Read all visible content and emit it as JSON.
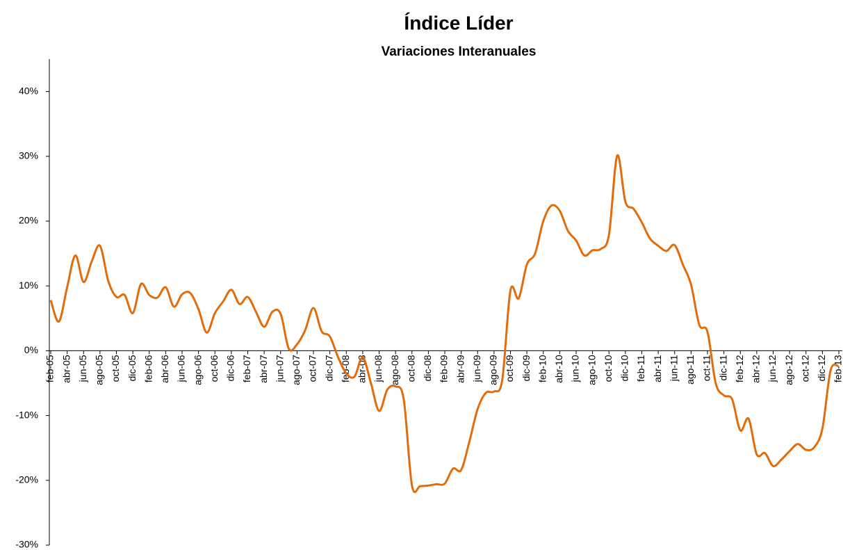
{
  "chart_data": {
    "type": "line",
    "title": "Índice Líder",
    "subtitle": "Variaciones Interanuales",
    "categories": [
      "feb-05",
      null,
      "abr-05",
      null,
      "jun-05",
      null,
      "ago-05",
      null,
      "oct-05",
      null,
      "dic-05",
      null,
      "feb-06",
      null,
      "abr-06",
      null,
      "jun-06",
      null,
      "ago-06",
      null,
      "oct-06",
      null,
      "dic-06",
      null,
      "feb-07",
      null,
      "abr-07",
      null,
      "jun-07",
      null,
      "ago-07",
      null,
      "oct-07",
      null,
      "dic-07",
      null,
      "feb-08",
      null,
      "abr-08",
      null,
      "jun-08",
      null,
      "ago-08",
      null,
      "oct-08",
      null,
      "dic-08",
      null,
      "feb-09",
      null,
      "abr-09",
      null,
      "jun-09",
      null,
      "ago-09",
      null,
      "oct-09",
      null,
      "dic-09",
      null,
      "feb-10",
      null,
      "abr-10",
      null,
      "jun-10",
      null,
      "ago-10",
      null,
      "oct-10",
      null,
      "dic-10",
      null,
      "feb-11",
      null,
      "abr-11",
      null,
      "jun-11",
      null,
      "ago-11",
      null,
      "oct-11",
      null,
      "dic-11",
      null,
      "feb-12",
      null,
      "abr-12",
      null,
      "jun-12",
      null,
      "ago-12",
      null,
      "oct-12",
      null,
      "dic-12",
      null,
      "feb-13"
    ],
    "series": [
      {
        "color": "#E36C0A",
        "values": [
          7.8,
          4.5,
          9.8,
          14.7,
          10.6,
          13.8,
          16.2,
          10.8,
          8.3,
          8.6,
          5.8,
          10.3,
          8.6,
          8.2,
          9.8,
          6.8,
          8.7,
          8.9,
          6.4,
          2.8,
          5.8,
          7.6,
          9.4,
          7.2,
          8.3,
          6.0,
          3.7,
          6.0,
          5.7,
          0.3,
          1.0,
          3.2,
          6.6,
          3.0,
          2.2,
          -1.0,
          -3.5,
          -4.0,
          -1.0,
          -5.0,
          -9.3,
          -6.0,
          -5.5,
          -7.5,
          -20.8,
          -20.9,
          -20.8,
          -20.6,
          -20.5,
          -18.2,
          -18.4,
          -14.0,
          -9.0,
          -6.5,
          -6.3,
          -4.5,
          9.3,
          8.1,
          13.3,
          15.0,
          20.0,
          22.4,
          21.6,
          18.5,
          17.0,
          14.7,
          15.5,
          15.7,
          17.9,
          30.1,
          23.0,
          21.9,
          19.8,
          17.3,
          16.2,
          15.4,
          16.3,
          13.3,
          10.2,
          4.0,
          2.9,
          -5.0,
          -6.9,
          -7.5,
          -12.3,
          -10.5,
          -16.0,
          -15.8,
          -17.8,
          -16.8,
          -15.5,
          -14.4,
          -15.3,
          -14.9,
          -12.0,
          -3.0,
          -2.4
        ]
      }
    ],
    "ylim": [
      -30,
      45
    ],
    "yticks": [
      {
        "value": -30,
        "label": "-30%"
      },
      {
        "value": -20,
        "label": "-20%"
      },
      {
        "value": -10,
        "label": "-10%"
      },
      {
        "value": 0,
        "label": "0%"
      },
      {
        "value": 10,
        "label": "10%"
      },
      {
        "value": 20,
        "label": "20%"
      },
      {
        "value": 30,
        "label": "30%"
      },
      {
        "value": 40,
        "label": "40%"
      }
    ]
  }
}
